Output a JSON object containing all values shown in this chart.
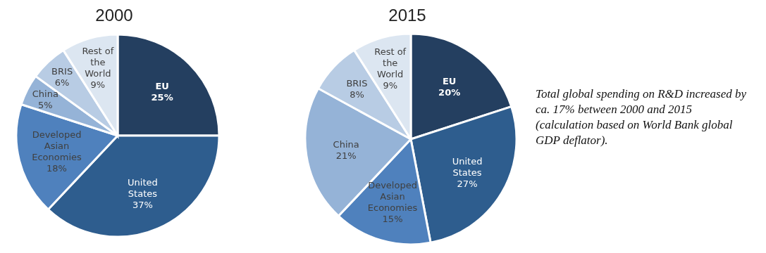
{
  "chart_data": [
    {
      "type": "pie",
      "title": "2000",
      "categories": [
        "EU",
        "United States",
        "Developed Asian Economies",
        "China",
        "BRIS",
        "Rest of the World"
      ],
      "values": [
        25,
        37,
        18,
        5,
        6,
        9
      ],
      "value_labels": [
        "25%",
        "37%",
        "18%",
        "5%",
        "6%",
        "9%"
      ],
      "colors": [
        "#243f60",
        "#2e5d8e",
        "#4f81bd",
        "#95b3d7",
        "#b8cce4",
        "#dce6f1"
      ]
    },
    {
      "type": "pie",
      "title": "2015",
      "categories": [
        "EU",
        "United States",
        "Developed Asian Economies",
        "China",
        "BRIS",
        "Rest of the World"
      ],
      "values": [
        20,
        27,
        15,
        21,
        8,
        9
      ],
      "value_labels": [
        "20%",
        "27%",
        "15%",
        "21%",
        "8%",
        "9%"
      ],
      "colors": [
        "#243f60",
        "#2e5d8e",
        "#4f81bd",
        "#95b3d7",
        "#b8cce4",
        "#dce6f1"
      ]
    },
    {
      "type": "other",
      "annotations": [
        "Total global spending on R&D increased by ca. 17% between 2000 and 2015 (calculation based on World Bank global GDP deflator)."
      ]
    }
  ]
}
